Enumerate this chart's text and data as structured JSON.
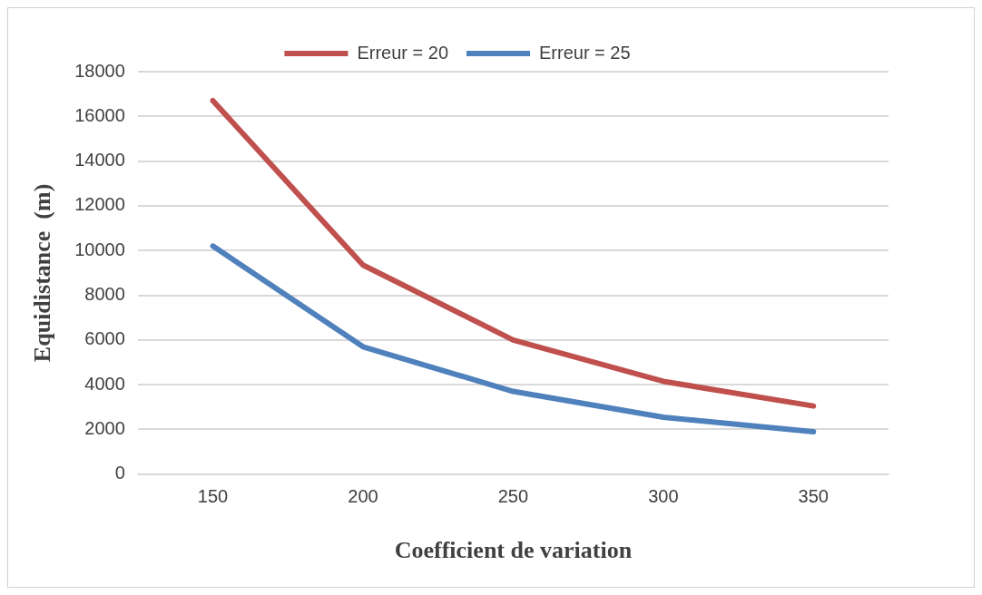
{
  "chart_data": {
    "type": "line",
    "xlabel": "Coefficient de variation",
    "ylabel": "Equidistance  (m)",
    "categories": [
      "150",
      "200",
      "250",
      "300",
      "350"
    ],
    "series": [
      {
        "name": "Erreur = 20",
        "color": "#c0504d",
        "values": [
          16700,
          9350,
          6000,
          4150,
          3050
        ]
      },
      {
        "name": "Erreur = 25",
        "color": "#4f81bd",
        "values": [
          10200,
          5700,
          3700,
          2550,
          1900
        ]
      }
    ],
    "ylim": [
      0,
      18000
    ],
    "yticks": [
      0,
      2000,
      4000,
      6000,
      8000,
      10000,
      12000,
      14000,
      16000,
      18000
    ],
    "grid": "y",
    "legend": "top",
    "marker": "none",
    "line_style": "solid"
  }
}
